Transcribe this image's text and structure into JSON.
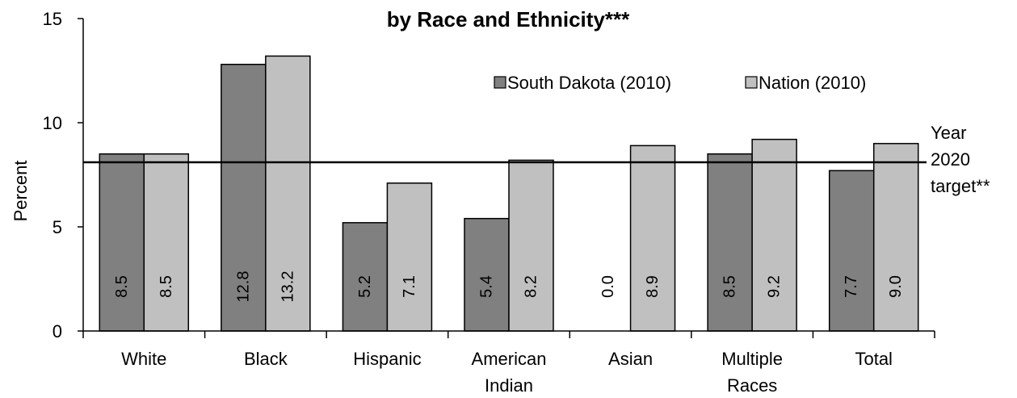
{
  "chart_data": {
    "type": "bar",
    "title_lines": [
      "by Race and Ethnicity***"
    ],
    "ylabel": "Percent",
    "xlabel": "",
    "ylim": [
      0,
      15
    ],
    "yticks": [
      0,
      5,
      10,
      15
    ],
    "categories": [
      [
        "White"
      ],
      [
        "Black"
      ],
      [
        "Hispanic"
      ],
      [
        "American",
        "Indian"
      ],
      [
        "Asian"
      ],
      [
        "Multiple",
        "Races"
      ],
      [
        "Total"
      ]
    ],
    "series": [
      {
        "name": "South Dakota (2010)",
        "values": [
          8.5,
          12.8,
          5.2,
          5.4,
          0.0,
          8.5,
          7.7
        ],
        "labels": [
          "8.5",
          "12.8",
          "5.2",
          "5.4",
          "0.0",
          "8.5",
          "7.7"
        ],
        "color": "#808080"
      },
      {
        "name": "Nation (2010)",
        "values": [
          8.5,
          13.2,
          7.1,
          8.2,
          8.9,
          9.2,
          9.0
        ],
        "labels": [
          "8.5",
          "13.2",
          "7.1",
          "8.2",
          "8.9",
          "9.2",
          "9.0"
        ],
        "color": "#c0c0c0"
      }
    ],
    "target_line": {
      "value": 8.1,
      "label_lines": [
        "Year",
        "2020",
        "target**"
      ]
    },
    "grid": false,
    "legend_position": "top-right"
  }
}
